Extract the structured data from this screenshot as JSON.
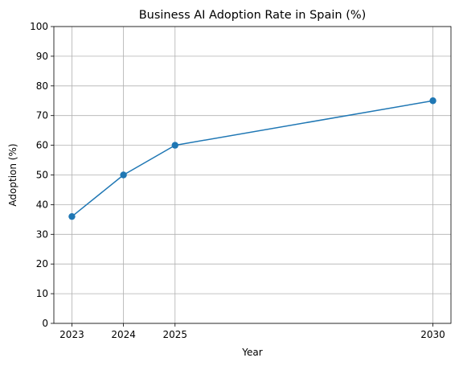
{
  "chart_data": {
    "type": "line",
    "title": "Business AI Adoption Rate in Spain (%)",
    "xlabel": "Year",
    "ylabel": "Adoption (%)",
    "x": [
      2023,
      2024,
      2025,
      2030
    ],
    "xticks": [
      "2023",
      "2024",
      "2025",
      "2030"
    ],
    "yticks": [
      "0",
      "10",
      "20",
      "30",
      "40",
      "50",
      "60",
      "70",
      "80",
      "90",
      "100"
    ],
    "ylim": [
      0,
      100
    ],
    "grid": true,
    "series": [
      {
        "values": [
          36,
          50,
          60,
          75
        ],
        "color": "#1f77b4",
        "marker": "circle"
      }
    ]
  }
}
